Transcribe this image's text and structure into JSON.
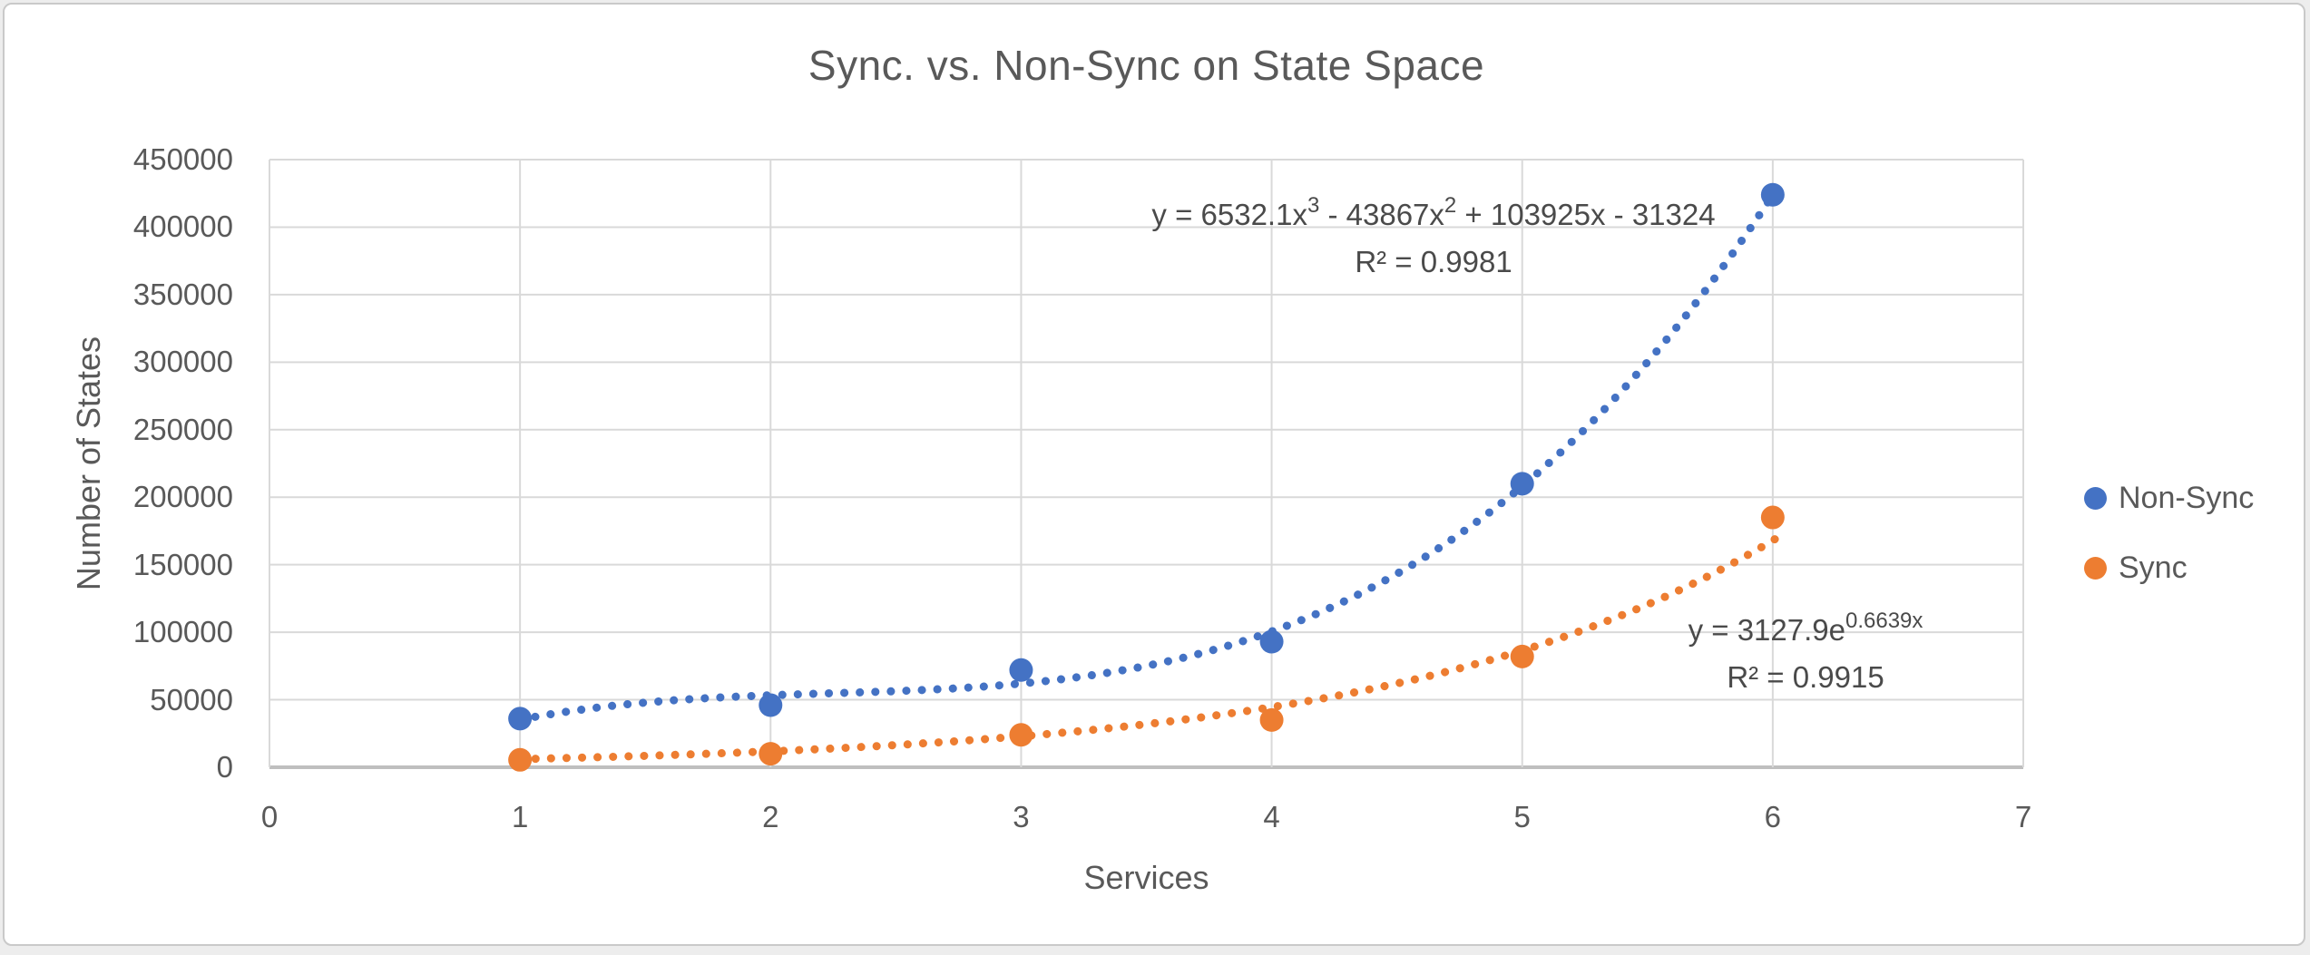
{
  "chart_title": "Sync. vs. Non-Sync on State Space",
  "axes": {
    "x": {
      "title": "Services",
      "min": 0,
      "max": 7,
      "ticks": [
        0,
        1,
        2,
        3,
        4,
        5,
        6,
        7
      ]
    },
    "y": {
      "title": "Number of States",
      "min": 0,
      "max": 450000,
      "ticks": [
        0,
        50000,
        100000,
        150000,
        200000,
        250000,
        300000,
        350000,
        400000,
        450000
      ]
    }
  },
  "legend": {
    "position": "right",
    "items": [
      {
        "label": "Non-Sync",
        "color": "#4472C4"
      },
      {
        "label": "Sync",
        "color": "#ED7D31"
      }
    ]
  },
  "colors": {
    "gridline": "#D9D9D9",
    "axis_line": "#BFBFBF",
    "text": "#595959",
    "background": "#FFFFFF",
    "non_sync": "#4472C4",
    "sync": "#ED7D31"
  },
  "chart_data": {
    "type": "scatter",
    "title": "Sync. vs. Non-Sync on State Space",
    "xlabel": "Services",
    "ylabel": "Number of States",
    "xlim": [
      0,
      7
    ],
    "ylim": [
      0,
      450000
    ],
    "grid": true,
    "legend_position": "right",
    "x": [
      1,
      2,
      3,
      4,
      5,
      6
    ],
    "series": [
      {
        "name": "Non-Sync",
        "color": "#4472C4",
        "values": [
          36000,
          46000,
          72000,
          93000,
          210000,
          424000
        ],
        "trendline": {
          "style": "dotted",
          "type": "polynomial",
          "order": 3,
          "coefficients": [
            6532.1,
            -43867,
            103925,
            -31324
          ],
          "x_range": [
            1,
            6
          ],
          "equation_parts": [
            "y = 6532.1x",
            "3",
            " - 43867x",
            "2",
            " + 103925x - 31324"
          ],
          "r2_label": "R² = 0.9981"
        }
      },
      {
        "name": "Sync",
        "color": "#ED7D31",
        "values": [
          5500,
          10000,
          24000,
          35000,
          82000,
          185000
        ],
        "trendline": {
          "style": "dotted",
          "type": "exponential",
          "a": 3127.9,
          "b": 0.6639,
          "x_range": [
            1,
            6.05
          ],
          "equation_parts": [
            "y = 3127.9e",
            "0.6639x"
          ],
          "r2_label": "R² = 0.9915"
        }
      }
    ]
  }
}
